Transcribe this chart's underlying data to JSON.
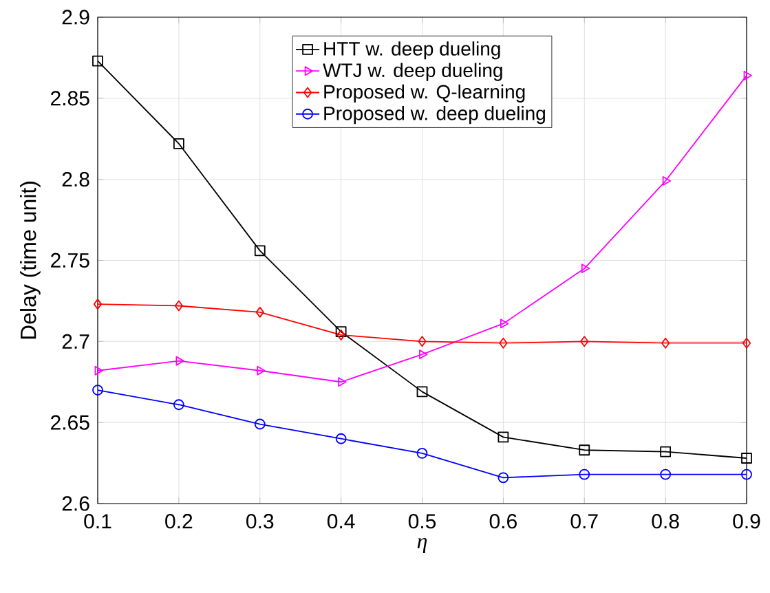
{
  "chart_data": {
    "type": "line",
    "xlabel": "η",
    "ylabel": "Delay (time unit)",
    "x": [
      0.1,
      0.2,
      0.3,
      0.4,
      0.5,
      0.6,
      0.7,
      0.8,
      0.9
    ],
    "xlim": [
      0.1,
      0.9
    ],
    "xticks": [
      0.1,
      0.2,
      0.3,
      0.4,
      0.5,
      0.6,
      0.7,
      0.8,
      0.9
    ],
    "ylim": [
      2.6,
      2.9
    ],
    "yticks": [
      2.6,
      2.65,
      2.7,
      2.75,
      2.8,
      2.85,
      2.9
    ],
    "grid": true,
    "legend": "top",
    "line_style": "solid",
    "series": [
      {
        "name": "HTT w. deep dueling",
        "color": "#000000",
        "marker": "square",
        "values": [
          2.873,
          2.822,
          2.756,
          2.706,
          2.669,
          2.641,
          2.633,
          2.632,
          2.628
        ]
      },
      {
        "name": "WTJ w. deep dueling",
        "color": "#ff00ff",
        "marker": "triangle",
        "values": [
          2.682,
          2.688,
          2.682,
          2.675,
          2.692,
          2.711,
          2.745,
          2.799,
          2.864
        ]
      },
      {
        "name": "Proposed w. Q-learning",
        "color": "#ff0000",
        "marker": "diamond",
        "values": [
          2.723,
          2.722,
          2.718,
          2.704,
          2.7,
          2.699,
          2.7,
          2.699,
          2.699
        ]
      },
      {
        "name": "Proposed w. deep dueling",
        "color": "#0000ff",
        "marker": "circle",
        "values": [
          2.67,
          2.661,
          2.649,
          2.64,
          2.631,
          2.616,
          2.618,
          2.618,
          2.618
        ]
      }
    ]
  }
}
